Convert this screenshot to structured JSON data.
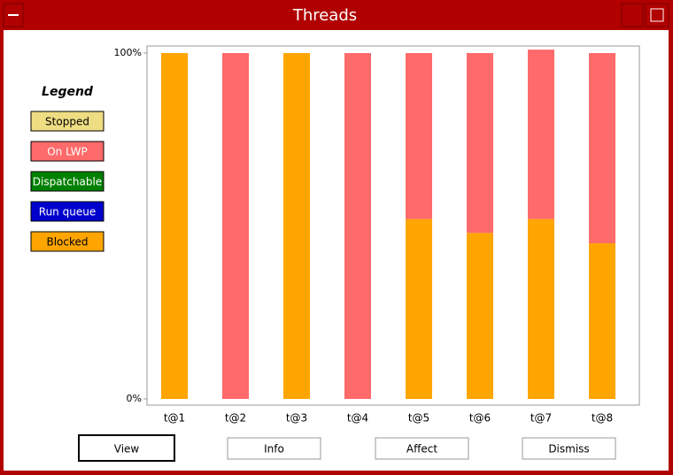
{
  "window": {
    "title": "Threads"
  },
  "chart_data": {
    "type": "stacked-bar",
    "legend_title": "Legend",
    "categories": [
      "t@1",
      "t@2",
      "t@3",
      "t@4",
      "t@5",
      "t@6",
      "t@7",
      "t@8"
    ],
    "series": [
      {
        "name": "Stopped",
        "color": "#eedd82",
        "values": [
          0,
          0,
          0,
          0,
          0,
          0,
          0,
          0
        ]
      },
      {
        "name": "On LWP",
        "color": "#ff6a6a",
        "values": [
          0,
          100,
          0,
          100,
          48,
          52,
          49,
          55
        ]
      },
      {
        "name": "Dispatchable",
        "color": "#008000",
        "values": [
          0,
          0,
          0,
          0,
          0,
          0,
          0,
          0
        ]
      },
      {
        "name": "Run queue",
        "color": "#0000cd",
        "values": [
          0,
          0,
          0,
          0,
          0,
          0,
          0,
          0
        ]
      },
      {
        "name": "Blocked",
        "color": "#ffa500",
        "values": [
          100,
          0,
          100,
          0,
          52,
          48,
          52,
          45
        ]
      }
    ],
    "ylim": [
      0,
      100
    ],
    "yticks": [
      {
        "value": 0,
        "label": "0%"
      },
      {
        "value": 100,
        "label": "100%"
      }
    ]
  },
  "buttons": [
    "View",
    "Info",
    "Affect",
    "Dismiss"
  ]
}
